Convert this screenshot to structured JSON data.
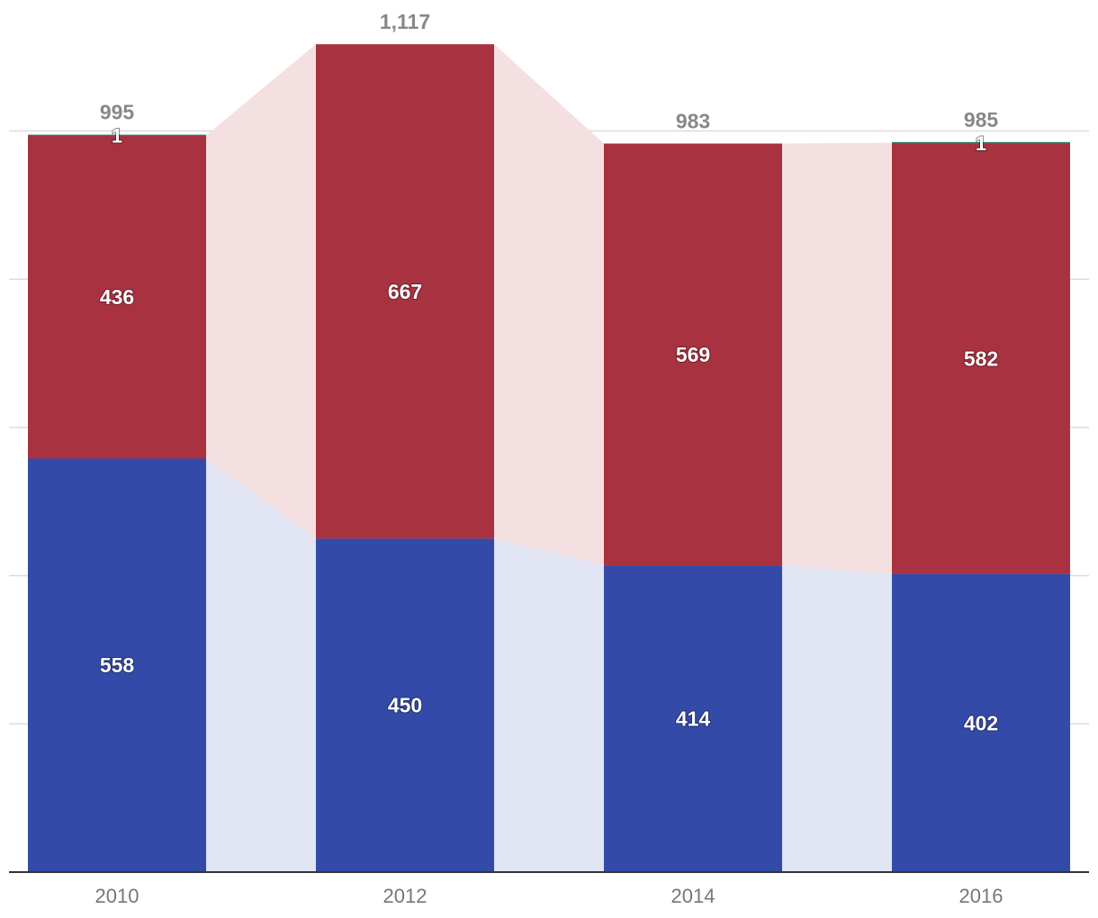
{
  "chart_data": {
    "type": "bar",
    "stacked": true,
    "categories": [
      "2010",
      "2012",
      "2014",
      "2016"
    ],
    "series": [
      {
        "values": [
          558,
          450,
          414,
          402
        ],
        "color": "#344aa8",
        "band_color": "#e1e4f2"
      },
      {
        "values": [
          436,
          667,
          569,
          582
        ],
        "color": "#a93240",
        "band_color": "#f4dfe1"
      },
      {
        "values": [
          1,
          0,
          0,
          1
        ],
        "color": "#2f7d6d"
      }
    ],
    "totals": [
      "995",
      "1,117",
      "983",
      "985"
    ],
    "segment_labels": [
      [
        "558",
        "450",
        "414",
        "402"
      ],
      [
        "436",
        "667",
        "569",
        "582"
      ],
      [
        "1",
        "",
        "",
        "1"
      ]
    ],
    "ylim": [
      0,
      1200
    ],
    "grid": true,
    "title": "",
    "xlabel": "",
    "ylabel": ""
  }
}
